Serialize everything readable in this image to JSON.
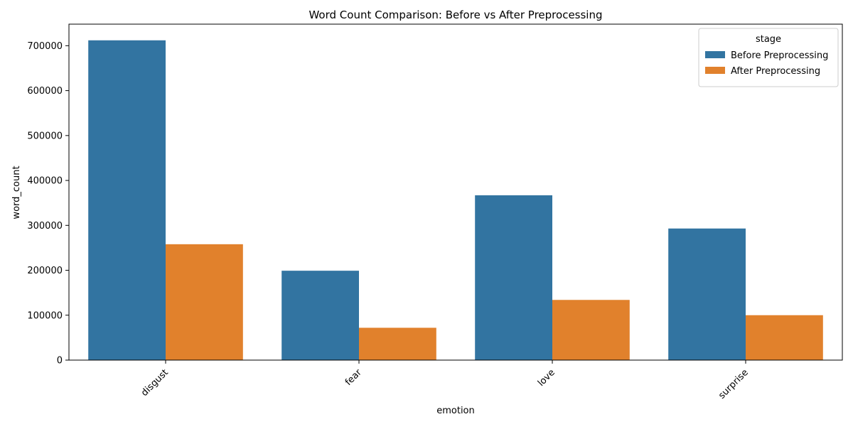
{
  "chart_data": {
    "type": "bar",
    "title": "Word Count Comparison: Before vs After Preprocessing",
    "xlabel": "emotion",
    "ylabel": "word_count",
    "categories": [
      "disgust",
      "fear",
      "love",
      "surprise"
    ],
    "series": [
      {
        "name": "Before Preprocessing",
        "color": "#3274a1",
        "values": [
          712000,
          199000,
          367000,
          293000
        ]
      },
      {
        "name": "After Preprocessing",
        "color": "#e1812c",
        "values": [
          258000,
          72000,
          134000,
          100000
        ]
      }
    ],
    "ylim": [
      0,
      748000
    ],
    "yticks": [
      0,
      100000,
      200000,
      300000,
      400000,
      500000,
      600000,
      700000
    ],
    "grid": false,
    "legend": {
      "title": "stage",
      "placement": "top-right"
    }
  }
}
